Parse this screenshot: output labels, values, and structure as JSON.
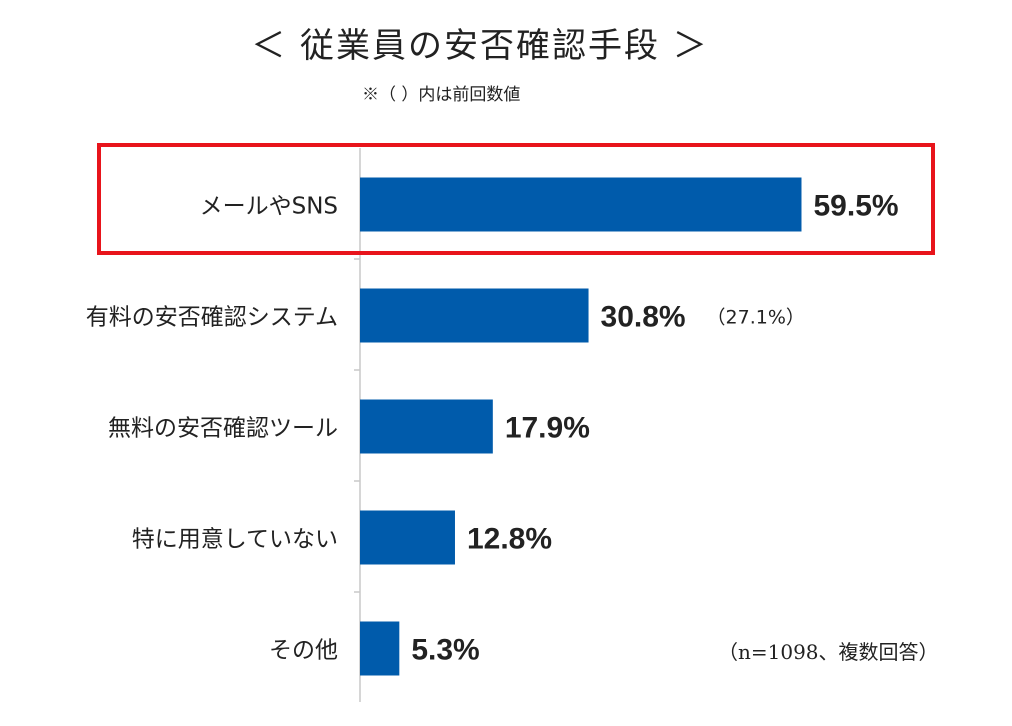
{
  "chart_data": {
    "type": "bar",
    "orientation": "horizontal",
    "title": "＜ 従業員の安否確認手段 ＞",
    "subtitle": "※（ ）内は前回数値",
    "note": "（n=1098、複数回答）",
    "categories": [
      "メールやSNS",
      "有料の安否確認システム",
      "無料の安否確認ツール",
      "特に用意していない",
      "その他"
    ],
    "values": [
      59.5,
      30.8,
      17.9,
      12.8,
      5.3
    ],
    "value_labels": [
      "59.5%",
      "30.8%",
      "17.9%",
      "12.8%",
      "5.3%"
    ],
    "previous_labels": [
      "",
      "（27.1%）",
      "",
      "",
      ""
    ],
    "highlighted_category": "メールやSNS",
    "xlim": [
      0,
      100
    ],
    "xlabel": "",
    "ylabel": "",
    "grid": false,
    "colors": {
      "bar": "#005bab",
      "highlight": "#e8141b",
      "axis": "#c8c8c8",
      "text": "#222222"
    }
  }
}
